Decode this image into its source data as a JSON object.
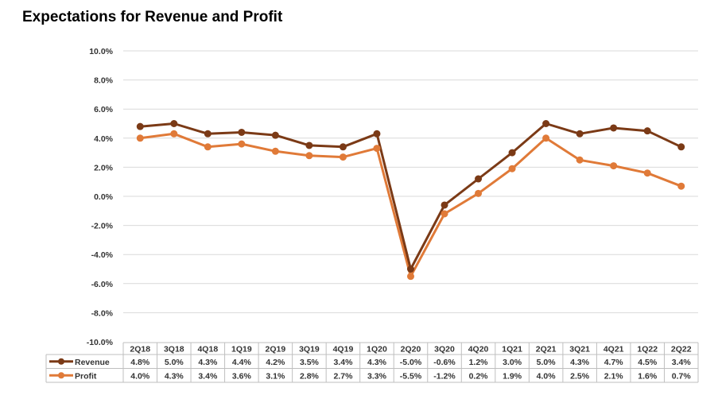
{
  "colors": {
    "revenue": "#7b3a16",
    "profit": "#e07a38",
    "grid": "#d9d9d9",
    "table_border": "#bfbfbf"
  },
  "chart_data": {
    "type": "line",
    "title": "Expectations for Revenue and Profit",
    "categories": [
      "2Q18",
      "3Q18",
      "4Q18",
      "1Q19",
      "2Q19",
      "3Q19",
      "4Q19",
      "1Q20",
      "2Q20",
      "3Q20",
      "4Q20",
      "1Q21",
      "2Q21",
      "3Q21",
      "4Q21",
      "1Q22",
      "2Q22"
    ],
    "ylim": [
      -10,
      10
    ],
    "yticks": [
      10,
      8,
      6,
      4,
      2,
      0,
      -2,
      -4,
      -6,
      -8,
      -10
    ],
    "ytick_labels": [
      "10.0%",
      "8.0%",
      "6.0%",
      "4.0%",
      "2.0%",
      "0.0%",
      "-2.0%",
      "-4.0%",
      "-6.0%",
      "-8.0%",
      "-10.0%"
    ],
    "grid": true,
    "legend": "data-table",
    "series": [
      {
        "name": "Revenue",
        "values": [
          4.8,
          5.0,
          4.3,
          4.4,
          4.2,
          3.5,
          3.4,
          4.3,
          -5.0,
          -0.6,
          1.2,
          3.0,
          5.0,
          4.3,
          4.7,
          4.5,
          3.4
        ],
        "labels": [
          "4.8%",
          "5.0%",
          "4.3%",
          "4.4%",
          "4.2%",
          "3.5%",
          "3.4%",
          "4.3%",
          "-5.0%",
          "-0.6%",
          "1.2%",
          "3.0%",
          "5.0%",
          "4.3%",
          "4.7%",
          "4.5%",
          "3.4%"
        ]
      },
      {
        "name": "Profit",
        "values": [
          4.0,
          4.3,
          3.4,
          3.6,
          3.1,
          2.8,
          2.7,
          3.3,
          -5.5,
          -1.2,
          0.2,
          1.9,
          4.0,
          2.5,
          2.1,
          1.6,
          0.7
        ],
        "labels": [
          "4.0%",
          "4.3%",
          "3.4%",
          "3.6%",
          "3.1%",
          "2.8%",
          "2.7%",
          "3.3%",
          "-5.5%",
          "-1.2%",
          "0.2%",
          "1.9%",
          "4.0%",
          "2.5%",
          "2.1%",
          "1.6%",
          "0.7%"
        ]
      }
    ]
  }
}
